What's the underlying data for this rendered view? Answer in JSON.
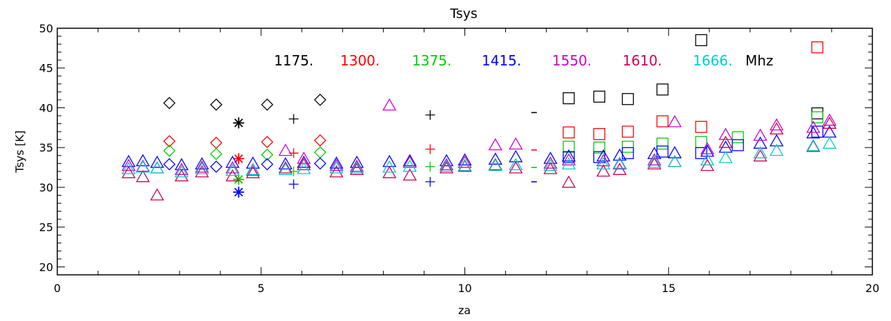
{
  "chart_data": {
    "type": "scatter",
    "title": "Tsys",
    "xlabel": "za",
    "ylabel": "Tsys [K]",
    "xlim": [
      0,
      20
    ],
    "ylim": [
      19,
      50
    ],
    "x_ticks": [
      0,
      5,
      10,
      15,
      20
    ],
    "y_ticks": [
      20,
      25,
      30,
      35,
      40,
      45,
      50
    ],
    "x_tick_labels": [
      "0",
      "5",
      "10",
      "15",
      "20"
    ],
    "y_tick_labels": [
      "20",
      "25",
      "30",
      "35",
      "40",
      "45",
      "50"
    ],
    "grid": false,
    "legend": {
      "placement": "top-center",
      "unit": "Mhz",
      "entries": [
        {
          "label": "1175.",
          "color": "#000000"
        },
        {
          "label": "1300.",
          "color": "#ff0000"
        },
        {
          "label": "1375.",
          "color": "#00cc00"
        },
        {
          "label": "1415.",
          "color": "#0000ff"
        },
        {
          "label": "1550.",
          "color": "#cc00cc"
        },
        {
          "label": "1610.",
          "color": "#cc0055"
        },
        {
          "label": "1666.",
          "color": "#00cccc"
        }
      ]
    },
    "series": [
      {
        "frequency": "1175.",
        "color": "#000000",
        "points": [
          {
            "x": 2.75,
            "y": 40.6,
            "marker": "diamond"
          },
          {
            "x": 3.9,
            "y": 40.4,
            "marker": "diamond"
          },
          {
            "x": 5.15,
            "y": 40.4,
            "marker": "diamond"
          },
          {
            "x": 6.45,
            "y": 41.0,
            "marker": "diamond"
          },
          {
            "x": 4.45,
            "y": 38.1,
            "marker": "star"
          },
          {
            "x": 5.8,
            "y": 38.6,
            "marker": "plus"
          },
          {
            "x": 9.15,
            "y": 39.1,
            "marker": "plus"
          },
          {
            "x": 11.7,
            "y": 39.4,
            "marker": "dash"
          },
          {
            "x": 12.55,
            "y": 41.2,
            "marker": "square"
          },
          {
            "x": 13.3,
            "y": 41.4,
            "marker": "square"
          },
          {
            "x": 14.0,
            "y": 41.1,
            "marker": "square"
          },
          {
            "x": 14.85,
            "y": 42.3,
            "marker": "square"
          },
          {
            "x": 15.8,
            "y": 48.5,
            "marker": "square"
          },
          {
            "x": 18.65,
            "y": 39.3,
            "marker": "square"
          }
        ]
      },
      {
        "frequency": "1300.",
        "color": "#ff0000",
        "points": [
          {
            "x": 2.75,
            "y": 35.8,
            "marker": "diamond"
          },
          {
            "x": 3.9,
            "y": 35.6,
            "marker": "diamond"
          },
          {
            "x": 5.15,
            "y": 35.7,
            "marker": "diamond"
          },
          {
            "x": 6.45,
            "y": 35.9,
            "marker": "diamond"
          },
          {
            "x": 4.45,
            "y": 33.6,
            "marker": "star"
          },
          {
            "x": 5.8,
            "y": 34.3,
            "marker": "plus"
          },
          {
            "x": 9.15,
            "y": 34.8,
            "marker": "plus"
          },
          {
            "x": 11.7,
            "y": 34.7,
            "marker": "dash"
          },
          {
            "x": 12.55,
            "y": 36.9,
            "marker": "square"
          },
          {
            "x": 13.3,
            "y": 36.7,
            "marker": "square"
          },
          {
            "x": 14.0,
            "y": 37.0,
            "marker": "square"
          },
          {
            "x": 14.85,
            "y": 38.3,
            "marker": "square"
          },
          {
            "x": 15.8,
            "y": 37.6,
            "marker": "square"
          },
          {
            "x": 18.65,
            "y": 47.6,
            "marker": "square"
          }
        ]
      },
      {
        "frequency": "1375.",
        "color": "#00cc00",
        "points": [
          {
            "x": 2.75,
            "y": 34.6,
            "marker": "diamond"
          },
          {
            "x": 3.9,
            "y": 34.2,
            "marker": "diamond"
          },
          {
            "x": 5.15,
            "y": 34.1,
            "marker": "diamond"
          },
          {
            "x": 6.45,
            "y": 34.4,
            "marker": "diamond"
          },
          {
            "x": 4.45,
            "y": 31.0,
            "marker": "star"
          },
          {
            "x": 5.8,
            "y": 32.0,
            "marker": "plus"
          },
          {
            "x": 9.15,
            "y": 32.6,
            "marker": "plus"
          },
          {
            "x": 11.7,
            "y": 32.5,
            "marker": "dash"
          },
          {
            "x": 12.55,
            "y": 35.1,
            "marker": "square"
          },
          {
            "x": 13.3,
            "y": 35.0,
            "marker": "square"
          },
          {
            "x": 14.0,
            "y": 35.1,
            "marker": "square"
          },
          {
            "x": 14.85,
            "y": 35.5,
            "marker": "square"
          },
          {
            "x": 15.8,
            "y": 35.7,
            "marker": "square"
          },
          {
            "x": 16.7,
            "y": 36.3,
            "marker": "square"
          },
          {
            "x": 18.65,
            "y": 38.8,
            "marker": "square"
          }
        ]
      },
      {
        "frequency": "1415.",
        "color": "#0000ff",
        "points": [
          {
            "x": 1.75,
            "y": 33.2,
            "marker": "triangle"
          },
          {
            "x": 2.1,
            "y": 33.3,
            "marker": "triangle"
          },
          {
            "x": 2.45,
            "y": 33.1,
            "marker": "triangle"
          },
          {
            "x": 3.05,
            "y": 32.8,
            "marker": "triangle"
          },
          {
            "x": 3.55,
            "y": 32.9,
            "marker": "triangle"
          },
          {
            "x": 4.3,
            "y": 33.1,
            "marker": "triangle"
          },
          {
            "x": 4.8,
            "y": 33.0,
            "marker": "triangle"
          },
          {
            "x": 5.6,
            "y": 32.9,
            "marker": "triangle"
          },
          {
            "x": 6.05,
            "y": 33.1,
            "marker": "triangle"
          },
          {
            "x": 6.85,
            "y": 33.0,
            "marker": "triangle"
          },
          {
            "x": 7.35,
            "y": 33.1,
            "marker": "triangle"
          },
          {
            "x": 8.15,
            "y": 33.2,
            "marker": "triangle"
          },
          {
            "x": 8.65,
            "y": 33.3,
            "marker": "triangle"
          },
          {
            "x": 9.55,
            "y": 33.3,
            "marker": "triangle"
          },
          {
            "x": 10.0,
            "y": 33.4,
            "marker": "triangle"
          },
          {
            "x": 10.75,
            "y": 33.5,
            "marker": "triangle"
          },
          {
            "x": 11.25,
            "y": 33.8,
            "marker": "triangle"
          },
          {
            "x": 12.1,
            "y": 33.6,
            "marker": "triangle"
          },
          {
            "x": 12.55,
            "y": 33.9,
            "marker": "triangle"
          },
          {
            "x": 13.4,
            "y": 33.9,
            "marker": "triangle"
          },
          {
            "x": 13.8,
            "y": 34.0,
            "marker": "triangle"
          },
          {
            "x": 14.65,
            "y": 34.2,
            "marker": "triangle"
          },
          {
            "x": 15.15,
            "y": 34.3,
            "marker": "triangle"
          },
          {
            "x": 15.95,
            "y": 34.5,
            "marker": "triangle"
          },
          {
            "x": 16.4,
            "y": 35.0,
            "marker": "triangle"
          },
          {
            "x": 17.25,
            "y": 35.5,
            "marker": "triangle"
          },
          {
            "x": 17.65,
            "y": 35.8,
            "marker": "triangle"
          },
          {
            "x": 18.55,
            "y": 36.8,
            "marker": "triangle"
          },
          {
            "x": 18.95,
            "y": 36.9,
            "marker": "triangle"
          },
          {
            "x": 2.75,
            "y": 32.9,
            "marker": "diamond"
          },
          {
            "x": 3.9,
            "y": 32.6,
            "marker": "diamond"
          },
          {
            "x": 5.15,
            "y": 32.9,
            "marker": "diamond"
          },
          {
            "x": 6.45,
            "y": 33.0,
            "marker": "diamond"
          },
          {
            "x": 4.45,
            "y": 29.4,
            "marker": "star"
          },
          {
            "x": 5.8,
            "y": 30.4,
            "marker": "plus"
          },
          {
            "x": 9.15,
            "y": 30.7,
            "marker": "plus"
          },
          {
            "x": 11.7,
            "y": 30.7,
            "marker": "dash"
          },
          {
            "x": 12.55,
            "y": 33.8,
            "marker": "square"
          },
          {
            "x": 13.3,
            "y": 33.8,
            "marker": "square"
          },
          {
            "x": 14.0,
            "y": 34.3,
            "marker": "square"
          },
          {
            "x": 14.85,
            "y": 34.5,
            "marker": "square"
          },
          {
            "x": 15.8,
            "y": 34.3,
            "marker": "square"
          },
          {
            "x": 16.7,
            "y": 35.3,
            "marker": "square"
          },
          {
            "x": 18.65,
            "y": 37.0,
            "marker": "square"
          }
        ]
      },
      {
        "frequency": "1550.",
        "color": "#cc00cc",
        "points": [
          {
            "x": 1.75,
            "y": 32.7,
            "marker": "triangle"
          },
          {
            "x": 2.1,
            "y": 32.6,
            "marker": "triangle"
          },
          {
            "x": 2.45,
            "y": 32.4,
            "marker": "triangle"
          },
          {
            "x": 3.05,
            "y": 32.2,
            "marker": "triangle"
          },
          {
            "x": 3.55,
            "y": 32.5,
            "marker": "triangle"
          },
          {
            "x": 4.3,
            "y": 32.4,
            "marker": "triangle"
          },
          {
            "x": 4.8,
            "y": 32.1,
            "marker": "triangle"
          },
          {
            "x": 5.6,
            "y": 34.6,
            "marker": "triangle"
          },
          {
            "x": 6.05,
            "y": 33.6,
            "marker": "triangle"
          },
          {
            "x": 6.85,
            "y": 32.7,
            "marker": "triangle"
          },
          {
            "x": 7.35,
            "y": 32.6,
            "marker": "triangle"
          },
          {
            "x": 8.15,
            "y": 40.3,
            "marker": "triangle"
          },
          {
            "x": 8.65,
            "y": 33.1,
            "marker": "triangle"
          },
          {
            "x": 9.55,
            "y": 32.8,
            "marker": "triangle"
          },
          {
            "x": 10.0,
            "y": 33.1,
            "marker": "triangle"
          },
          {
            "x": 10.75,
            "y": 35.3,
            "marker": "triangle"
          },
          {
            "x": 11.25,
            "y": 35.4,
            "marker": "triangle"
          },
          {
            "x": 12.1,
            "y": 33.0,
            "marker": "triangle"
          },
          {
            "x": 12.55,
            "y": 33.4,
            "marker": "triangle"
          },
          {
            "x": 13.4,
            "y": 33.3,
            "marker": "triangle"
          },
          {
            "x": 13.8,
            "y": 32.9,
            "marker": "triangle"
          },
          {
            "x": 14.65,
            "y": 33.4,
            "marker": "triangle"
          },
          {
            "x": 15.15,
            "y": 38.2,
            "marker": "triangle"
          },
          {
            "x": 15.95,
            "y": 34.8,
            "marker": "triangle"
          },
          {
            "x": 16.4,
            "y": 36.6,
            "marker": "triangle"
          },
          {
            "x": 17.25,
            "y": 36.5,
            "marker": "triangle"
          },
          {
            "x": 17.65,
            "y": 37.8,
            "marker": "triangle"
          },
          {
            "x": 18.55,
            "y": 37.5,
            "marker": "triangle"
          },
          {
            "x": 18.95,
            "y": 38.4,
            "marker": "triangle"
          }
        ]
      },
      {
        "frequency": "1610.",
        "color": "#cc0055",
        "points": [
          {
            "x": 1.75,
            "y": 31.8,
            "marker": "triangle"
          },
          {
            "x": 2.1,
            "y": 31.3,
            "marker": "triangle"
          },
          {
            "x": 2.45,
            "y": 29.0,
            "marker": "triangle"
          },
          {
            "x": 3.05,
            "y": 31.4,
            "marker": "triangle"
          },
          {
            "x": 3.55,
            "y": 31.9,
            "marker": "triangle"
          },
          {
            "x": 4.3,
            "y": 31.4,
            "marker": "triangle"
          },
          {
            "x": 4.8,
            "y": 31.8,
            "marker": "triangle"
          },
          {
            "x": 5.6,
            "y": 32.4,
            "marker": "triangle"
          },
          {
            "x": 6.05,
            "y": 32.8,
            "marker": "triangle"
          },
          {
            "x": 6.85,
            "y": 31.9,
            "marker": "triangle"
          },
          {
            "x": 7.35,
            "y": 32.2,
            "marker": "triangle"
          },
          {
            "x": 8.15,
            "y": 31.8,
            "marker": "triangle"
          },
          {
            "x": 8.65,
            "y": 31.5,
            "marker": "triangle"
          },
          {
            "x": 9.55,
            "y": 32.4,
            "marker": "triangle"
          },
          {
            "x": 10.0,
            "y": 32.6,
            "marker": "triangle"
          },
          {
            "x": 10.75,
            "y": 32.8,
            "marker": "triangle"
          },
          {
            "x": 11.25,
            "y": 32.4,
            "marker": "triangle"
          },
          {
            "x": 12.1,
            "y": 32.3,
            "marker": "triangle"
          },
          {
            "x": 12.55,
            "y": 30.6,
            "marker": "triangle"
          },
          {
            "x": 13.4,
            "y": 32.0,
            "marker": "triangle"
          },
          {
            "x": 13.8,
            "y": 32.2,
            "marker": "triangle"
          },
          {
            "x": 14.65,
            "y": 32.9,
            "marker": "triangle"
          },
          {
            "x": 15.15,
            "y": 33.2,
            "marker": "triangle"
          },
          {
            "x": 15.95,
            "y": 32.7,
            "marker": "triangle"
          },
          {
            "x": 16.4,
            "y": 35.6,
            "marker": "triangle"
          },
          {
            "x": 17.25,
            "y": 33.9,
            "marker": "triangle"
          },
          {
            "x": 17.65,
            "y": 37.3,
            "marker": "triangle"
          },
          {
            "x": 18.55,
            "y": 35.1,
            "marker": "triangle"
          },
          {
            "x": 18.95,
            "y": 38.0,
            "marker": "triangle"
          }
        ]
      },
      {
        "frequency": "1666.",
        "color": "#00cccc",
        "points": [
          {
            "x": 1.75,
            "y": 32.3,
            "marker": "triangle"
          },
          {
            "x": 2.1,
            "y": 32.5,
            "marker": "triangle"
          },
          {
            "x": 2.45,
            "y": 32.4,
            "marker": "triangle"
          },
          {
            "x": 3.05,
            "y": 31.9,
            "marker": "triangle"
          },
          {
            "x": 3.55,
            "y": 32.3,
            "marker": "triangle"
          },
          {
            "x": 4.3,
            "y": 32.1,
            "marker": "triangle"
          },
          {
            "x": 4.8,
            "y": 32.2,
            "marker": "triangle"
          },
          {
            "x": 5.6,
            "y": 32.2,
            "marker": "triangle"
          },
          {
            "x": 6.05,
            "y": 32.3,
            "marker": "triangle"
          },
          {
            "x": 6.85,
            "y": 32.4,
            "marker": "triangle"
          },
          {
            "x": 7.35,
            "y": 32.4,
            "marker": "triangle"
          },
          {
            "x": 8.15,
            "y": 32.5,
            "marker": "triangle"
          },
          {
            "x": 8.65,
            "y": 32.6,
            "marker": "triangle"
          },
          {
            "x": 9.55,
            "y": 32.6,
            "marker": "triangle"
          },
          {
            "x": 10.0,
            "y": 32.7,
            "marker": "triangle"
          },
          {
            "x": 10.75,
            "y": 32.7,
            "marker": "triangle"
          },
          {
            "x": 11.25,
            "y": 32.8,
            "marker": "triangle"
          },
          {
            "x": 12.1,
            "y": 32.7,
            "marker": "triangle"
          },
          {
            "x": 12.55,
            "y": 32.9,
            "marker": "triangle"
          },
          {
            "x": 13.4,
            "y": 32.9,
            "marker": "triangle"
          },
          {
            "x": 13.8,
            "y": 33.0,
            "marker": "triangle"
          },
          {
            "x": 14.65,
            "y": 33.1,
            "marker": "triangle"
          },
          {
            "x": 15.15,
            "y": 33.2,
            "marker": "triangle"
          },
          {
            "x": 15.95,
            "y": 33.4,
            "marker": "triangle"
          },
          {
            "x": 16.4,
            "y": 33.7,
            "marker": "triangle"
          },
          {
            "x": 17.25,
            "y": 34.3,
            "marker": "triangle"
          },
          {
            "x": 17.65,
            "y": 34.6,
            "marker": "triangle"
          },
          {
            "x": 18.55,
            "y": 35.2,
            "marker": "triangle"
          },
          {
            "x": 18.95,
            "y": 35.5,
            "marker": "triangle"
          }
        ]
      }
    ]
  }
}
